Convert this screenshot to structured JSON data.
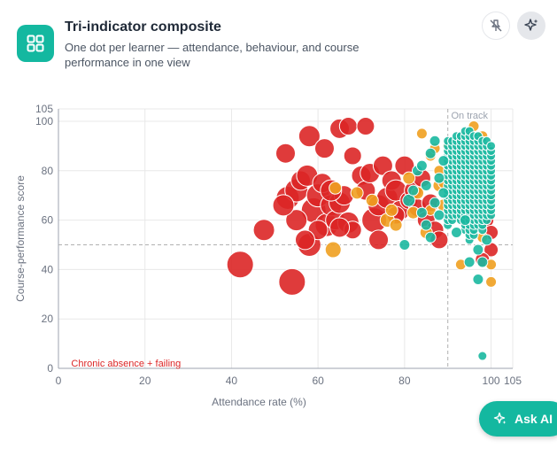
{
  "header": {
    "title": "Tri-indicator composite",
    "subtitle": "One dot per learner — attendance, behaviour, and course performance in one view",
    "icon": "grid-icon",
    "actions": [
      {
        "name": "pin-off-button",
        "icon": "pin-off-icon"
      },
      {
        "name": "ai-sparkle-button",
        "icon": "sparkle-icon"
      }
    ]
  },
  "ask_ai": {
    "label": "Ask AI",
    "icon": "sparkle-icon"
  },
  "colors": {
    "red": "#dc2626",
    "amber": "#f0a020",
    "teal": "#1ab8a0",
    "accent": "#14b8a0"
  },
  "chart_data": {
    "type": "scatter",
    "xlabel": "Attendance rate (%)",
    "ylabel": "Course-performance score",
    "xlim": [
      0,
      105
    ],
    "ylim": [
      0,
      105
    ],
    "xticks": [
      0,
      20,
      40,
      60,
      80,
      100,
      105
    ],
    "yticks": [
      0,
      20,
      40,
      60,
      80,
      100,
      105
    ],
    "grid": true,
    "reference_lines": {
      "x": 90,
      "y": 50
    },
    "annotations": [
      {
        "text": "On track",
        "x": 92,
        "y": 101
      },
      {
        "text": "Chronic absence + failing",
        "x": 5,
        "y": 0
      }
    ],
    "series": [
      {
        "color": "red",
        "points": [
          [
            42,
            42,
            15
          ],
          [
            54,
            35,
            15
          ],
          [
            47.5,
            56,
            12
          ],
          [
            52.5,
            87,
            11
          ],
          [
            58,
            94,
            12
          ],
          [
            61.5,
            89,
            11
          ],
          [
            65,
            97,
            11
          ],
          [
            67,
            98,
            10
          ],
          [
            71,
            98,
            10
          ],
          [
            53,
            69,
            13
          ],
          [
            55,
            72,
            13
          ],
          [
            56,
            76,
            11
          ],
          [
            57.5,
            78,
            12
          ],
          [
            59,
            64,
            14
          ],
          [
            60,
            70,
            13
          ],
          [
            61,
            75,
            11
          ],
          [
            62,
            58,
            13
          ],
          [
            63,
            66,
            12
          ],
          [
            64,
            60,
            11
          ],
          [
            65,
            67,
            12
          ],
          [
            66,
            70,
            11
          ],
          [
            67,
            59,
            12
          ],
          [
            68,
            86,
            10
          ],
          [
            70,
            78,
            11
          ],
          [
            71,
            72,
            11
          ],
          [
            72,
            79,
            11
          ],
          [
            73,
            60,
            14
          ],
          [
            74,
            66,
            12
          ],
          [
            75,
            82,
            11
          ],
          [
            76,
            69,
            12
          ],
          [
            77,
            76,
            11
          ],
          [
            78,
            72,
            12
          ],
          [
            79,
            64,
            11
          ],
          [
            80,
            82,
            11
          ],
          [
            81,
            68,
            10
          ],
          [
            82,
            72,
            10
          ],
          [
            83,
            65,
            10
          ],
          [
            84,
            77,
            10
          ],
          [
            85,
            60,
            10
          ],
          [
            86,
            67,
            10
          ],
          [
            87,
            56,
            10
          ],
          [
            88,
            52,
            10
          ],
          [
            58,
            50,
            13
          ],
          [
            55,
            60,
            12
          ],
          [
            52,
            66,
            12
          ],
          [
            74,
            52,
            11
          ],
          [
            68,
            56,
            10
          ],
          [
            63,
            72,
            12
          ],
          [
            60,
            56,
            11
          ],
          [
            78,
            62,
            10
          ],
          [
            100,
            48,
            8
          ],
          [
            99,
            60,
            8
          ],
          [
            98,
            44,
            8
          ],
          [
            100,
            55,
            8
          ],
          [
            57,
            52,
            11
          ],
          [
            65,
            57,
            11
          ]
        ]
      },
      {
        "color": "amber",
        "points": [
          [
            63.5,
            48,
            9
          ],
          [
            64,
            73,
            7
          ],
          [
            69,
            71,
            7
          ],
          [
            72.5,
            68,
            7
          ],
          [
            76,
            60,
            8
          ],
          [
            77,
            64,
            7
          ],
          [
            78,
            58,
            7
          ],
          [
            81,
            77,
            7
          ],
          [
            82,
            63,
            7
          ],
          [
            83,
            71,
            7
          ],
          [
            84,
            95,
            6
          ],
          [
            85,
            55,
            7
          ],
          [
            86,
            86,
            6
          ],
          [
            87,
            89,
            6
          ],
          [
            88,
            74,
            7
          ],
          [
            89,
            66,
            7
          ],
          [
            90,
            90,
            6
          ],
          [
            91,
            80,
            6
          ],
          [
            92,
            73,
            6
          ],
          [
            93,
            85,
            6
          ],
          [
            94,
            93,
            6
          ],
          [
            95,
            56,
            6
          ],
          [
            96,
            98,
            6
          ],
          [
            97,
            63,
            6
          ],
          [
            98,
            94,
            6
          ],
          [
            99,
            88,
            6
          ],
          [
            100,
            70,
            6
          ],
          [
            100,
            42,
            6
          ],
          [
            100,
            35,
            6
          ],
          [
            98,
            53,
            6
          ],
          [
            97,
            58,
            6
          ],
          [
            96,
            61,
            6
          ],
          [
            93,
            42,
            6
          ],
          [
            89,
            75,
            6
          ],
          [
            88,
            80,
            6
          ],
          [
            86,
            64,
            6
          ]
        ]
      },
      {
        "color": "teal",
        "points": [
          [
            80,
            50,
            6
          ],
          [
            81,
            68,
            7
          ],
          [
            82,
            72,
            6
          ],
          [
            83,
            80,
            6
          ],
          [
            84,
            63,
            6
          ],
          [
            84,
            82,
            6
          ],
          [
            85,
            58,
            6
          ],
          [
            85,
            74,
            6
          ],
          [
            86,
            53,
            6
          ],
          [
            86,
            87,
            6
          ],
          [
            87,
            67,
            6
          ],
          [
            87,
            92,
            6
          ],
          [
            88,
            62,
            6
          ],
          [
            88,
            77,
            6
          ],
          [
            89,
            71,
            6
          ],
          [
            89,
            84,
            6
          ],
          [
            95,
            43,
            6
          ],
          [
            98,
            43,
            6
          ],
          [
            97,
            36,
            6
          ],
          [
            98,
            5,
            5
          ],
          [
            97,
            48,
            6
          ],
          [
            99,
            52,
            6
          ],
          [
            94,
            60,
            6
          ],
          [
            92,
            55,
            6
          ]
        ]
      }
    ],
    "band": {
      "color": "teal",
      "columns": [
        90,
        91,
        92,
        93,
        94,
        95,
        96,
        97,
        98,
        99,
        100
      ],
      "y_ranges": [
        [
          58,
          93
        ],
        [
          60,
          92
        ],
        [
          62,
          94
        ],
        [
          60,
          95
        ],
        [
          56,
          96
        ],
        [
          52,
          97
        ],
        [
          54,
          95
        ],
        [
          58,
          94
        ],
        [
          56,
          92
        ],
        [
          60,
          93
        ],
        [
          62,
          90
        ]
      ],
      "step": 2
    }
  }
}
